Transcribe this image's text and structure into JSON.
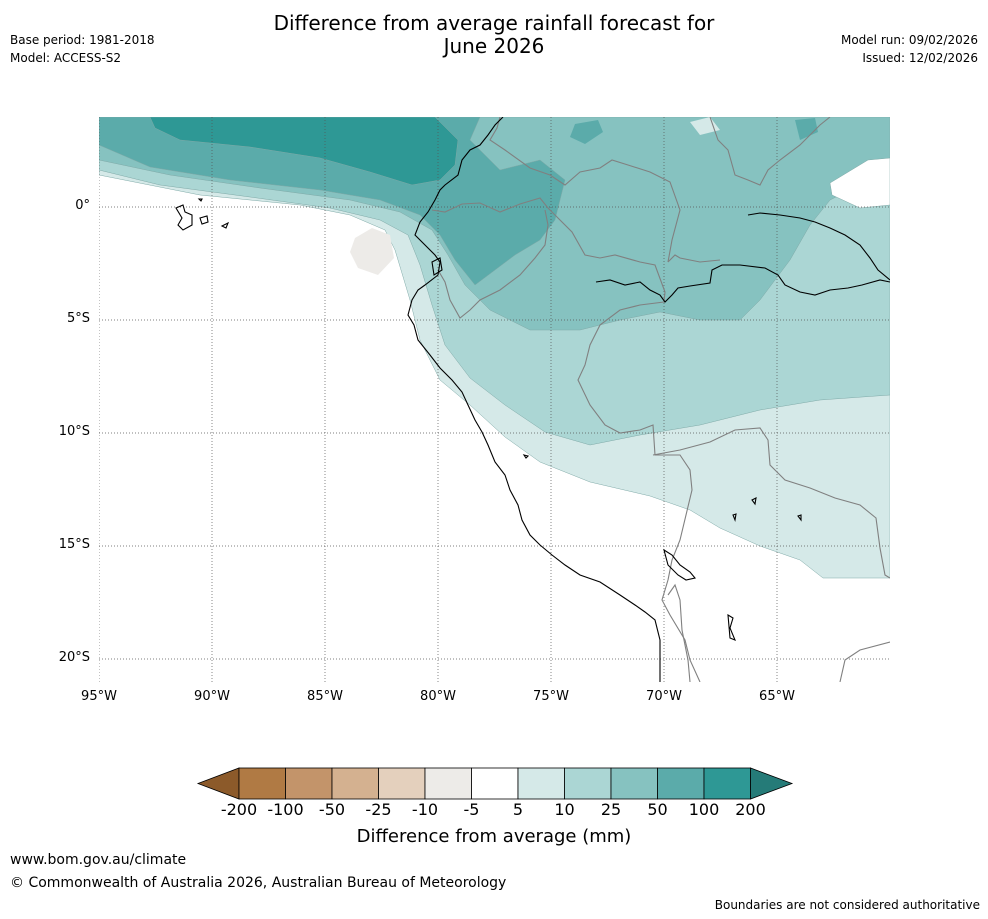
{
  "header": {
    "title_line1": "Difference from average rainfall forecast for",
    "title_line2": "June 2026",
    "base_period": "Base period: 1981-2018",
    "model": "Model: ACCESS-S2",
    "model_run": "Model run: 09/02/2026",
    "issued": "Issued: 12/02/2026"
  },
  "axes": {
    "latitudes": [
      "0°",
      "5°S",
      "10°S",
      "15°S",
      "20°S"
    ],
    "longitudes": [
      "95°W",
      "90°W",
      "85°W",
      "80°W",
      "75°W",
      "70°W",
      "65°W"
    ]
  },
  "legend": {
    "title": "Difference from average (mm)",
    "ticks": [
      "-200",
      "-100",
      "-50",
      "-25",
      "-10",
      "-5",
      "5",
      "10",
      "25",
      "50",
      "100",
      "200"
    ],
    "colors": [
      "#8c5a2a",
      "#b07a44",
      "#c3946a",
      "#d4b190",
      "#e4d0bd",
      "#edebe8",
      "#ffffff",
      "#d5e9e8",
      "#abd6d4",
      "#86c2c0",
      "#5babaa",
      "#2e9895",
      "#257b78"
    ]
  },
  "footer": {
    "website": "www.bom.gov.au/climate",
    "copyright": "© Commonwealth of Australia 2026, Australian Bureau of Meteorology",
    "disclaimer": "Boundaries are not considered authoritative"
  }
}
